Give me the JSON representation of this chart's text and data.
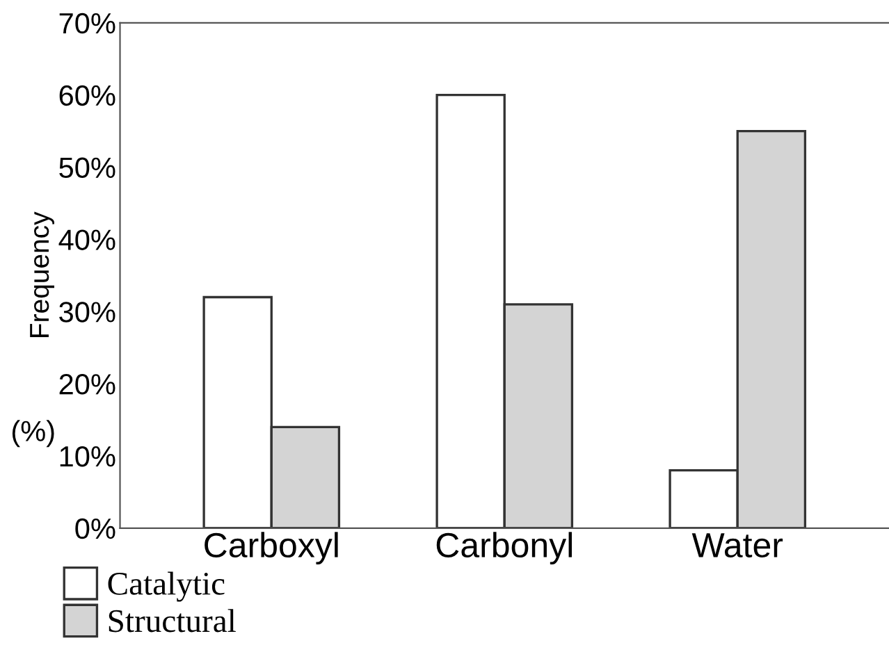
{
  "chart_data": {
    "type": "bar",
    "ylabel": "Frequency",
    "annotations": [
      "(%)"
    ],
    "categories": [
      "Carboxyl",
      "Carbonyl",
      "Water"
    ],
    "series": [
      {
        "name": "Catalytic",
        "color": "#ffffff",
        "values": [
          32,
          60,
          8
        ]
      },
      {
        "name": "Structural",
        "color": "#d4d4d4",
        "values": [
          14,
          31,
          55
        ]
      }
    ],
    "ylim": [
      0,
      70
    ],
    "yticks": [
      {
        "value": 0,
        "label": "0%"
      },
      {
        "value": 10,
        "label": "10%"
      },
      {
        "value": 20,
        "label": "20%"
      },
      {
        "value": 30,
        "label": "30%"
      },
      {
        "value": 40,
        "label": "40%"
      },
      {
        "value": 50,
        "label": "50%"
      },
      {
        "value": 60,
        "label": "60%"
      },
      {
        "value": 70,
        "label": "70%"
      }
    ],
    "grid": false,
    "legend": "bottom left"
  }
}
